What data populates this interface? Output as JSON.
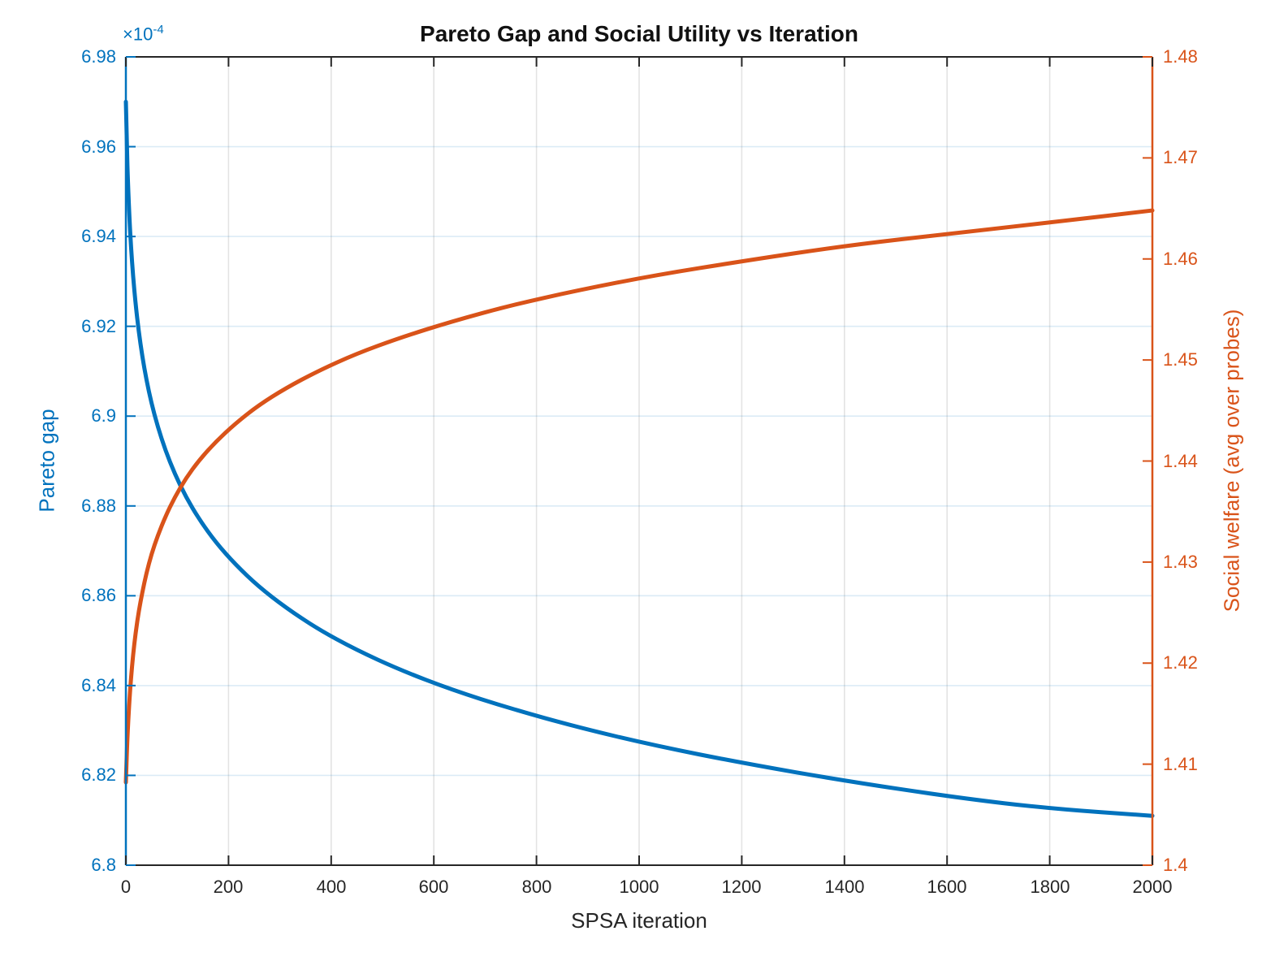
{
  "title": "Pareto Gap and Social Utility vs Iteration",
  "axes": {
    "x": {
      "label": "SPSA iteration",
      "color": "#262626",
      "range": [
        0,
        2000
      ],
      "ticks": [
        "0",
        "200",
        "400",
        "600",
        "800",
        "1000",
        "1200",
        "1400",
        "1600",
        "1800",
        "2000"
      ]
    },
    "left": {
      "label": "Pareto gap",
      "color": "#0072BD",
      "multiplier": "×10",
      "exponent": "-4",
      "range": [
        6.8,
        6.98
      ],
      "ticks": [
        "6.98",
        "6.96",
        "6.94",
        "6.92",
        "6.9",
        "6.88",
        "6.86",
        "6.84",
        "6.82",
        "6.8"
      ]
    },
    "right": {
      "label": "Social welfare (avg over probes)",
      "color": "#D95319",
      "range": [
        1.4,
        1.48
      ],
      "ticks": [
        "1.48",
        "1.47",
        "1.46",
        "1.45",
        "1.44",
        "1.43",
        "1.42",
        "1.41",
        "1.4"
      ]
    }
  },
  "chart_data": {
    "type": "line",
    "title": "Pareto Gap and Social Utility vs Iteration",
    "xlabel": "SPSA iteration",
    "x_range": [
      0,
      2000
    ],
    "grid": true,
    "legend": "none",
    "series": [
      {
        "id": "curve-pareto",
        "name": "Pareto gap",
        "axis": "left",
        "y_unit": "1e-4",
        "color": "#0072BD",
        "y_range": [
          6.8,
          6.98
        ],
        "x": [
          0,
          2,
          4,
          7,
          10,
          14,
          19,
          25,
          32,
          40,
          50,
          62,
          77,
          95,
          117,
          143,
          175,
          213,
          258,
          311,
          374,
          448,
          534,
          634,
          749,
          881,
          1032,
          1204,
          1400,
          1622,
          1800,
          2000
        ],
        "y": [
          6.97,
          6.9595,
          6.9521,
          6.9439,
          6.9377,
          6.9312,
          6.9249,
          6.9189,
          6.9133,
          6.9081,
          6.9028,
          6.8977,
          6.8924,
          6.8872,
          6.882,
          6.877,
          6.8719,
          6.867,
          6.8621,
          6.8574,
          6.8526,
          6.848,
          6.8435,
          6.8391,
          6.8349,
          6.8307,
          6.8266,
          6.8227,
          6.8188,
          6.815,
          6.8126,
          6.811
        ]
      },
      {
        "id": "curve-welfare",
        "name": "Social welfare (avg over probes)",
        "axis": "right",
        "color": "#D95319",
        "y_range": [
          1.4,
          1.48
        ],
        "x": [
          0,
          2,
          4,
          7,
          10,
          14,
          19,
          25,
          32,
          40,
          50,
          62,
          77,
          95,
          117,
          143,
          175,
          213,
          258,
          311,
          374,
          448,
          534,
          634,
          749,
          881,
          1032,
          1204,
          1400,
          1622,
          1800,
          2000
        ],
        "y": [
          1.4082,
          1.4114,
          1.4137,
          1.4164,
          1.4185,
          1.4208,
          1.423,
          1.4251,
          1.427,
          1.4289,
          1.4308,
          1.4326,
          1.4345,
          1.4364,
          1.4383,
          1.4401,
          1.4419,
          1.4437,
          1.4455,
          1.4472,
          1.4489,
          1.4506,
          1.4522,
          1.4538,
          1.4554,
          1.4569,
          1.4584,
          1.4598,
          1.4613,
          1.4626,
          1.4636,
          1.4648
        ]
      }
    ]
  }
}
